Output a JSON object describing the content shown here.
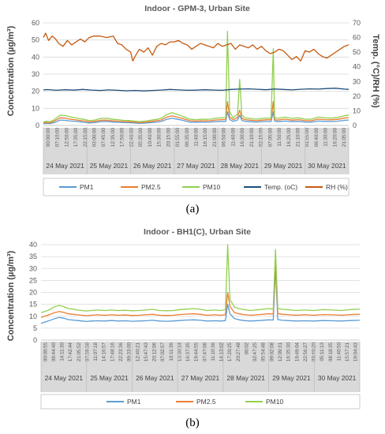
{
  "chart_data": [
    {
      "type": "line",
      "panel_label": "(a)",
      "title": "Indoor - GPM-3, Urban Site",
      "ylabel": "Concentration (µg/m³)",
      "y2label": "Temp. (°C)/RH (%)",
      "ylim": [
        0,
        60
      ],
      "y2lim": [
        0,
        70
      ],
      "yticks": [
        0,
        10,
        20,
        30,
        40,
        50,
        60
      ],
      "y2ticks": [
        0,
        10,
        20,
        30,
        40,
        50,
        60,
        70
      ],
      "grid": true,
      "legend": "bottom",
      "days": [
        "24 May 2021",
        "25 May 2021",
        "26 May 2021",
        "27 May 2021",
        "28 May 2021",
        "29 May 2021",
        "30 May 2021"
      ],
      "xtick_labels": [
        "00:00:00",
        "07:10:00",
        "12:50:00",
        "17:35:00",
        "22:15:00",
        "03:00:00",
        "07:45:00",
        "12:35:00",
        "17:50:00",
        "22:40:00",
        "05:35:00",
        "10:40:00",
        "15:30:00",
        "20:15:00",
        "01:55:00",
        "06:35:00",
        "11:40:00",
        "16:15:00",
        "21:00:00",
        "06:50:00",
        "11:40:00",
        "16:30:00",
        "21:10:00",
        "02:15:00",
        "07:05:00",
        "11:50:00",
        "16:25:00",
        "21:10:00",
        "01:55:00",
        "06:40:00",
        "11:30:00",
        "16:20:00",
        "21:05:00"
      ],
      "series": [
        {
          "name": "PM1",
          "axis": "left",
          "color": "#5b9bd5",
          "x": [
            0,
            0.06,
            0.15,
            0.22,
            0.28,
            0.38,
            0.5,
            0.62,
            0.72,
            0.82,
            0.95,
            1.05,
            1.18,
            1.3,
            1.42,
            1.5,
            1.6,
            1.72,
            1.85,
            1.95,
            2.08,
            2.2,
            2.35,
            2.48,
            2.6,
            2.7,
            2.82,
            2.95,
            3.08,
            3.2,
            3.35,
            3.5,
            3.62,
            3.72,
            3.82,
            3.95,
            4.08,
            4.18,
            4.22,
            4.27,
            4.35,
            4.45,
            4.5,
            4.55,
            4.62,
            4.75,
            4.88,
            5.0,
            5.12,
            5.22,
            5.27,
            5.3,
            5.35,
            5.45,
            5.55,
            5.7,
            5.85,
            6.0,
            6.15,
            6.3,
            6.45,
            6.6,
            6.75,
            6.9,
            7.0
          ],
          "y": [
            1,
            1.2,
            1.1,
            1.5,
            2,
            3.2,
            3,
            2.6,
            2.5,
            2.2,
            1.8,
            1.5,
            1.7,
            2.2,
            2.3,
            2.2,
            2,
            1.8,
            1.7,
            1.6,
            1.5,
            1.2,
            1.4,
            1.7,
            2,
            2.3,
            3.5,
            4.2,
            3.6,
            3,
            2,
            1.8,
            2,
            1.9,
            2,
            2.2,
            2.4,
            2.4,
            8,
            3.5,
            2.4,
            3.2,
            6,
            3,
            2.4,
            2.2,
            2,
            2.2,
            2.3,
            2.3,
            8,
            2.6,
            2.2,
            2.4,
            2.6,
            2.2,
            2.4,
            2,
            2,
            2.6,
            2.4,
            2.3,
            2.5,
            3,
            3.2
          ]
        },
        {
          "name": "PM2.5",
          "axis": "left",
          "color": "#ed7d31",
          "x": [
            0,
            0.06,
            0.15,
            0.22,
            0.28,
            0.38,
            0.5,
            0.62,
            0.72,
            0.82,
            0.95,
            1.05,
            1.18,
            1.3,
            1.42,
            1.5,
            1.6,
            1.72,
            1.85,
            1.95,
            2.08,
            2.2,
            2.35,
            2.48,
            2.6,
            2.7,
            2.82,
            2.95,
            3.08,
            3.2,
            3.35,
            3.5,
            3.62,
            3.72,
            3.82,
            3.95,
            4.08,
            4.18,
            4.22,
            4.27,
            4.35,
            4.45,
            4.5,
            4.55,
            4.62,
            4.75,
            4.88,
            5.0,
            5.12,
            5.22,
            5.27,
            5.3,
            5.35,
            5.45,
            5.55,
            5.7,
            5.85,
            6.0,
            6.15,
            6.3,
            6.45,
            6.6,
            6.75,
            6.9,
            7.0
          ],
          "y": [
            1.5,
            1.8,
            1.6,
            2.2,
            3,
            4.5,
            4.3,
            3.6,
            3.4,
            3,
            2.6,
            2.1,
            2.4,
            3,
            3.1,
            3,
            2.7,
            2.5,
            2.3,
            2.2,
            2,
            1.7,
            2,
            2.4,
            2.8,
            3.2,
            4.8,
            5.6,
            4.8,
            4,
            2.8,
            2.5,
            2.8,
            2.7,
            2.8,
            3.2,
            3.4,
            3.5,
            14,
            5,
            3.4,
            4.6,
            9,
            4.2,
            3.4,
            3.1,
            2.8,
            3.1,
            3.3,
            3.3,
            14,
            3.6,
            3.1,
            3.4,
            3.7,
            3.1,
            3.4,
            2.8,
            2.8,
            3.7,
            3.4,
            3.3,
            3.6,
            4.3,
            4.6
          ]
        },
        {
          "name": "PM10",
          "axis": "left",
          "color": "#92d050",
          "x": [
            0,
            0.06,
            0.15,
            0.22,
            0.28,
            0.38,
            0.5,
            0.62,
            0.72,
            0.82,
            0.95,
            1.05,
            1.18,
            1.3,
            1.42,
            1.5,
            1.6,
            1.72,
            1.85,
            1.95,
            2.08,
            2.2,
            2.35,
            2.48,
            2.6,
            2.7,
            2.82,
            2.95,
            3.08,
            3.2,
            3.35,
            3.5,
            3.62,
            3.72,
            3.82,
            3.95,
            4.08,
            4.18,
            4.22,
            4.27,
            4.35,
            4.45,
            4.5,
            4.55,
            4.62,
            4.75,
            4.88,
            5.0,
            5.12,
            5.22,
            5.27,
            5.3,
            5.35,
            5.45,
            5.55,
            5.7,
            5.85,
            6.0,
            6.15,
            6.3,
            6.45,
            6.6,
            6.75,
            6.9,
            7.0
          ],
          "y": [
            2,
            2.5,
            2.2,
            3,
            4,
            6,
            5.8,
            5,
            4.6,
            4,
            3.5,
            2.8,
            3.2,
            4,
            4.2,
            4,
            3.6,
            3.3,
            3,
            2.9,
            2.6,
            2.2,
            2.6,
            3.2,
            3.6,
            4.2,
            6.3,
            7.5,
            6.4,
            5.3,
            3.7,
            3.3,
            3.7,
            3.6,
            3.7,
            4.2,
            4.5,
            4.6,
            55,
            8,
            4.5,
            6.5,
            27,
            6,
            4.5,
            4.1,
            3.7,
            4.1,
            4.3,
            4.3,
            45,
            5,
            4.1,
            4.5,
            4.9,
            4.1,
            4.5,
            3.7,
            3.7,
            4.9,
            4.5,
            4.3,
            4.7,
            5.7,
            6.1
          ]
        },
        {
          "name": "Temp. (oC)",
          "axis": "right",
          "color": "#1f4e79",
          "x": [
            0,
            0.1,
            0.3,
            0.5,
            0.7,
            0.9,
            1.1,
            1.3,
            1.5,
            1.7,
            1.9,
            2.1,
            2.3,
            2.5,
            2.7,
            2.9,
            3.1,
            3.3,
            3.5,
            3.7,
            3.9,
            4.1,
            4.3,
            4.5,
            4.7,
            4.9,
            5.1,
            5.3,
            5.5,
            5.7,
            5.9,
            6.1,
            6.3,
            6.5,
            6.7,
            6.9,
            7.0
          ],
          "y": [
            24.3,
            24.5,
            24,
            24.4,
            24.1,
            24.6,
            24.2,
            23.9,
            24.3,
            24,
            23.7,
            23.9,
            23.6,
            23.9,
            24.2,
            24.6,
            24.3,
            24,
            24.1,
            24.4,
            24.2,
            24,
            24.6,
            24.8,
            25,
            24.7,
            24.4,
            24.9,
            24.6,
            24.3,
            24.7,
            25,
            24.8,
            25.2,
            25.4,
            24.8,
            24.6
          ]
        },
        {
          "name": "RH (%)",
          "axis": "right",
          "color": "#c55a11",
          "x": [
            0,
            0.05,
            0.12,
            0.2,
            0.28,
            0.35,
            0.45,
            0.55,
            0.65,
            0.75,
            0.85,
            0.95,
            1.05,
            1.15,
            1.3,
            1.45,
            1.6,
            1.7,
            1.8,
            1.9,
            2.0,
            2.05,
            2.1,
            2.2,
            2.3,
            2.4,
            2.5,
            2.6,
            2.7,
            2.8,
            2.9,
            3.0,
            3.1,
            3.2,
            3.3,
            3.4,
            3.5,
            3.6,
            3.7,
            3.8,
            3.9,
            4.0,
            4.1,
            4.2,
            4.3,
            4.4,
            4.5,
            4.6,
            4.7,
            4.8,
            4.9,
            5.0,
            5.1,
            5.2,
            5.3,
            5.4,
            5.5,
            5.6,
            5.7,
            5.8,
            5.9,
            6.0,
            6.1,
            6.2,
            6.3,
            6.4,
            6.5,
            6.6,
            6.7,
            6.8,
            6.9,
            7.0
          ],
          "y": [
            60,
            63,
            58,
            61,
            59,
            56,
            54,
            58,
            55,
            57,
            59,
            57,
            60,
            61,
            61,
            60,
            61,
            56,
            55,
            52,
            50,
            44,
            47,
            52,
            50,
            53,
            48,
            54,
            56,
            55,
            57,
            57,
            58,
            56,
            55,
            52,
            54,
            56,
            55,
            54,
            53,
            56,
            54,
            55,
            56,
            52,
            55,
            54,
            53,
            55,
            52,
            54,
            51,
            49,
            50,
            52,
            51,
            48,
            45,
            47,
            44,
            51,
            50,
            52,
            49,
            47,
            46,
            48,
            50,
            52,
            54,
            55
          ]
        }
      ]
    },
    {
      "type": "line",
      "panel_label": "(b)",
      "title": "Indoor - BH1(C), Urban Site",
      "ylabel": "Concentration (µg/m³)",
      "ylim": [
        0,
        40
      ],
      "yticks": [
        0,
        5,
        10,
        15,
        20,
        25,
        30,
        35,
        40
      ],
      "grid": true,
      "legend": "bottom",
      "days": [
        "24 May 2021",
        "25 May 2021",
        "26 May 2021",
        "27 May 2021",
        "28 May 2021",
        "29 May 2021",
        "30 May 2021"
      ],
      "xtick_labels": [
        "00:00:55",
        "09:44:40",
        "14:11:30",
        "17:42:44",
        "21:05:52",
        "07:59:58",
        "11:07:18",
        "14:16:57",
        "17:48:16",
        "22:23:36",
        "09:33:00",
        "12:40:21",
        "15:47:43",
        "20:12:06",
        "07:02:57",
        "10:11:36",
        "13:30:14",
        "16:37:35",
        "19:44:55",
        "07:47:06",
        "11:10:36",
        "14:13:02",
        "17:20:25",
        "20:27:48",
        "00:02",
        "02:47:25",
        "05:54:48",
        "09:02:08",
        "12:09:31",
        "16:35:30",
        "19:49:04",
        "22:56:27",
        "03:40:20",
        "05:11:13",
        "08:18:35",
        "11:40:50",
        "15:57:21",
        "19:04:43"
      ],
      "series": [
        {
          "name": "PM1",
          "color": "#5b9bd5",
          "x": [
            0,
            0.08,
            0.16,
            0.3,
            0.4,
            0.5,
            0.6,
            0.7,
            0.8,
            0.9,
            1.0,
            1.1,
            1.25,
            1.4,
            1.55,
            1.7,
            1.85,
            2.0,
            2.15,
            2.3,
            2.45,
            2.6,
            2.75,
            2.9,
            3.05,
            3.2,
            3.35,
            3.5,
            3.65,
            3.8,
            3.95,
            4.05,
            4.1,
            4.15,
            4.25,
            4.35,
            4.45,
            4.6,
            4.8,
            5.0,
            5.1,
            5.15,
            5.2,
            5.3,
            5.4,
            5.6,
            5.8,
            6.0,
            6.2,
            6.4,
            6.6,
            6.8,
            7.0
          ],
          "y": [
            7,
            7.5,
            8,
            9,
            9.5,
            9.2,
            8.6,
            8.4,
            8.2,
            8,
            7.8,
            8,
            8.1,
            8,
            8.2,
            8,
            8.1,
            7.9,
            8,
            8.1,
            8.3,
            8,
            7.9,
            8,
            8.2,
            8.4,
            8.5,
            8.3,
            8,
            8.1,
            8,
            8.2,
            15,
            11,
            9,
            8.5,
            8.2,
            8,
            8.2,
            8.5,
            8.4,
            30,
            8.6,
            8.3,
            8.2,
            8,
            8.1,
            8,
            8.2,
            8.1,
            8,
            8.2,
            8.3
          ]
        },
        {
          "name": "PM2.5",
          "color": "#ed7d31",
          "x": [
            0,
            0.08,
            0.16,
            0.3,
            0.4,
            0.5,
            0.6,
            0.7,
            0.8,
            0.9,
            1.0,
            1.1,
            1.25,
            1.4,
            1.55,
            1.7,
            1.85,
            2.0,
            2.15,
            2.3,
            2.45,
            2.6,
            2.75,
            2.9,
            3.05,
            3.2,
            3.35,
            3.5,
            3.65,
            3.8,
            3.95,
            4.05,
            4.1,
            4.15,
            4.25,
            4.35,
            4.45,
            4.6,
            4.8,
            5.0,
            5.1,
            5.15,
            5.2,
            5.3,
            5.4,
            5.6,
            5.8,
            6.0,
            6.2,
            6.4,
            6.6,
            6.8,
            7.0
          ],
          "y": [
            9.5,
            10,
            10.5,
            11.5,
            12,
            11.6,
            11,
            10.8,
            10.6,
            10.4,
            10.2,
            10.4,
            10.6,
            10.4,
            10.6,
            10.4,
            10.5,
            10.3,
            10.4,
            10.6,
            10.8,
            10.4,
            10.3,
            10.4,
            10.7,
            10.9,
            11,
            10.8,
            10.4,
            10.6,
            10.4,
            10.7,
            20,
            14,
            11.5,
            11,
            10.7,
            10.4,
            10.7,
            11,
            10.9,
            34,
            11.1,
            10.8,
            10.7,
            10.4,
            10.6,
            10.4,
            10.7,
            10.6,
            10.4,
            10.7,
            10.8
          ]
        },
        {
          "name": "PM10",
          "color": "#92d050",
          "x": [
            0,
            0.08,
            0.16,
            0.3,
            0.4,
            0.5,
            0.6,
            0.7,
            0.8,
            0.9,
            1.0,
            1.1,
            1.25,
            1.4,
            1.55,
            1.7,
            1.85,
            2.0,
            2.15,
            2.3,
            2.45,
            2.6,
            2.75,
            2.9,
            3.05,
            3.2,
            3.35,
            3.5,
            3.65,
            3.8,
            3.95,
            4.05,
            4.1,
            4.15,
            4.25,
            4.35,
            4.45,
            4.6,
            4.8,
            5.0,
            5.1,
            5.15,
            5.2,
            5.3,
            5.4,
            5.6,
            5.8,
            6.0,
            6.2,
            6.4,
            6.6,
            6.8,
            7.0
          ],
          "y": [
            11.5,
            12,
            12.5,
            14,
            14.5,
            14,
            13.2,
            13,
            12.6,
            12.4,
            12.2,
            12.4,
            12.6,
            12.4,
            12.6,
            12.4,
            12.5,
            12.3,
            12.4,
            12.6,
            12.9,
            12.4,
            12.3,
            12.4,
            12.8,
            13,
            13.2,
            12.9,
            12.4,
            12.6,
            12.4,
            12.8,
            40,
            17,
            13.8,
            13.2,
            12.8,
            12.4,
            12.8,
            13.2,
            13,
            38,
            13.3,
            12.9,
            12.8,
            12.4,
            12.6,
            12.4,
            12.8,
            12.6,
            12.4,
            12.8,
            13
          ]
        }
      ]
    }
  ]
}
